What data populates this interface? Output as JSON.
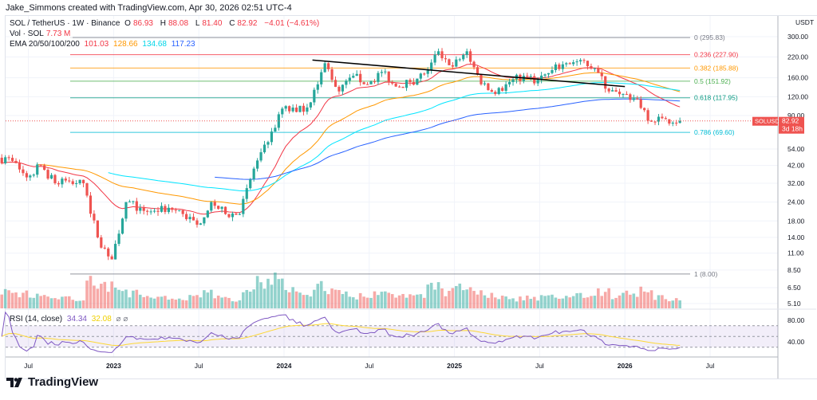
{
  "header": {
    "credit": "Jake_Simmons created with TradingView.com, Apr 30, 2026 02:51 UTC-4"
  },
  "legend": {
    "symbol": "SOL / TetherUS · 1W · Binance",
    "o_label": "O",
    "o": "86.93",
    "h_label": "H",
    "h": "88.08",
    "l_label": "L",
    "l": "81.40",
    "c_label": "C",
    "c": "82.92",
    "change": "−4.01 (−4.61%)",
    "vol_label": "Vol · SOL",
    "vol": "7.73 M",
    "ema_label": "EMA 20/50/100/200",
    "ema20": "101.03",
    "ema50": "128.66",
    "ema100": "134.68",
    "ema200": "117.23",
    "rsi_label": "RSI (14, close)",
    "rsi": "34.34",
    "rsi_ma": "32.08"
  },
  "colors": {
    "up": "#26a69a",
    "down": "#ef5350",
    "ema20": "#f23645",
    "ema50": "#ff9800",
    "ema100": "#00e5ff",
    "ema200": "#2962ff",
    "rsi": "#7e57c2",
    "rsi_ma": "#fdd835",
    "trendline": "#000000"
  },
  "price_tag": {
    "symbol": "SOLUSDT",
    "price": "82.92",
    "countdown": "3d 18h"
  },
  "brand": "TradingView",
  "chart_data": {
    "type": "candlestick",
    "scale": "log",
    "interval": "1W",
    "currency_label": "USDT",
    "ylim": [
      5.1,
      300
    ],
    "y_ticks": [
      "300.00",
      "220.00",
      "160.00",
      "120.00",
      "90.00",
      "54.00",
      "42.00",
      "32.00",
      "24.00",
      "18.00",
      "14.00",
      "11.00",
      "8.50",
      "6.50",
      "5.10"
    ],
    "rsi_ticks": [
      "80.00",
      "40.00"
    ],
    "x_ticks": [
      "Jul",
      "2023",
      "Jul",
      "2024",
      "Jul",
      "2025",
      "Jul",
      "2026",
      "Jul"
    ],
    "months": [
      "2022-05",
      "2022-06",
      "2022-07",
      "2022-08",
      "2022-09",
      "2022-10",
      "2022-11",
      "2022-12",
      "2023-01",
      "2023-02",
      "2023-03",
      "2023-04",
      "2023-05",
      "2023-06",
      "2023-07",
      "2023-08",
      "2023-09",
      "2023-10",
      "2023-11",
      "2023-12",
      "2024-01",
      "2024-02",
      "2024-03",
      "2024-04",
      "2024-05",
      "2024-06",
      "2024-07",
      "2024-08",
      "2024-09",
      "2024-10",
      "2024-11",
      "2024-12",
      "2025-01",
      "2025-02",
      "2025-03",
      "2025-04",
      "2025-05",
      "2025-06",
      "2025-07",
      "2025-08",
      "2025-09",
      "2025-10",
      "2025-11",
      "2025-12",
      "2026-01",
      "2026-02",
      "2026-03",
      "2026-04"
    ],
    "monthly_close_approx": [
      45,
      35,
      42,
      32,
      33,
      32,
      14,
      10,
      24,
      22,
      21,
      22,
      20,
      17,
      24,
      20,
      20,
      40,
      60,
      100,
      95,
      110,
      200,
      130,
      165,
      145,
      175,
      140,
      150,
      170,
      240,
      190,
      240,
      145,
      125,
      150,
      165,
      155,
      180,
      200,
      210,
      185,
      130,
      125,
      115,
      82,
      85,
      82.92
    ],
    "monthly_volume_approx_m": [
      14,
      12,
      10,
      9,
      9,
      8,
      22,
      18,
      14,
      12,
      10,
      9,
      8,
      9,
      12,
      9,
      8,
      14,
      22,
      24,
      16,
      14,
      20,
      14,
      12,
      10,
      12,
      12,
      10,
      10,
      18,
      14,
      18,
      14,
      12,
      10,
      8,
      9,
      10,
      11,
      10,
      12,
      14,
      10,
      12,
      14,
      10,
      7.73
    ],
    "fib_levels": [
      {
        "label": "0 (295.83)",
        "value": 295.83,
        "color": "#787b86"
      },
      {
        "label": "0.236 (227.90)",
        "value": 227.9,
        "color": "#f23645"
      },
      {
        "label": "0.382 (185.88)",
        "value": 185.88,
        "color": "#ff9800"
      },
      {
        "label": "0.5 (151.92)",
        "value": 151.92,
        "color": "#4caf50"
      },
      {
        "label": "0.618 (117.95)",
        "value": 117.95,
        "color": "#089981"
      },
      {
        "label": "0.786 (69.60)",
        "value": 69.6,
        "color": "#00bcd4"
      },
      {
        "label": "1 (8.00)",
        "value": 8.0,
        "color": "#787b86"
      }
    ],
    "trendline": {
      "from": {
        "date": "2024-03",
        "price": 210
      },
      "to": {
        "date": "2025-12",
        "price": 140
      }
    }
  }
}
